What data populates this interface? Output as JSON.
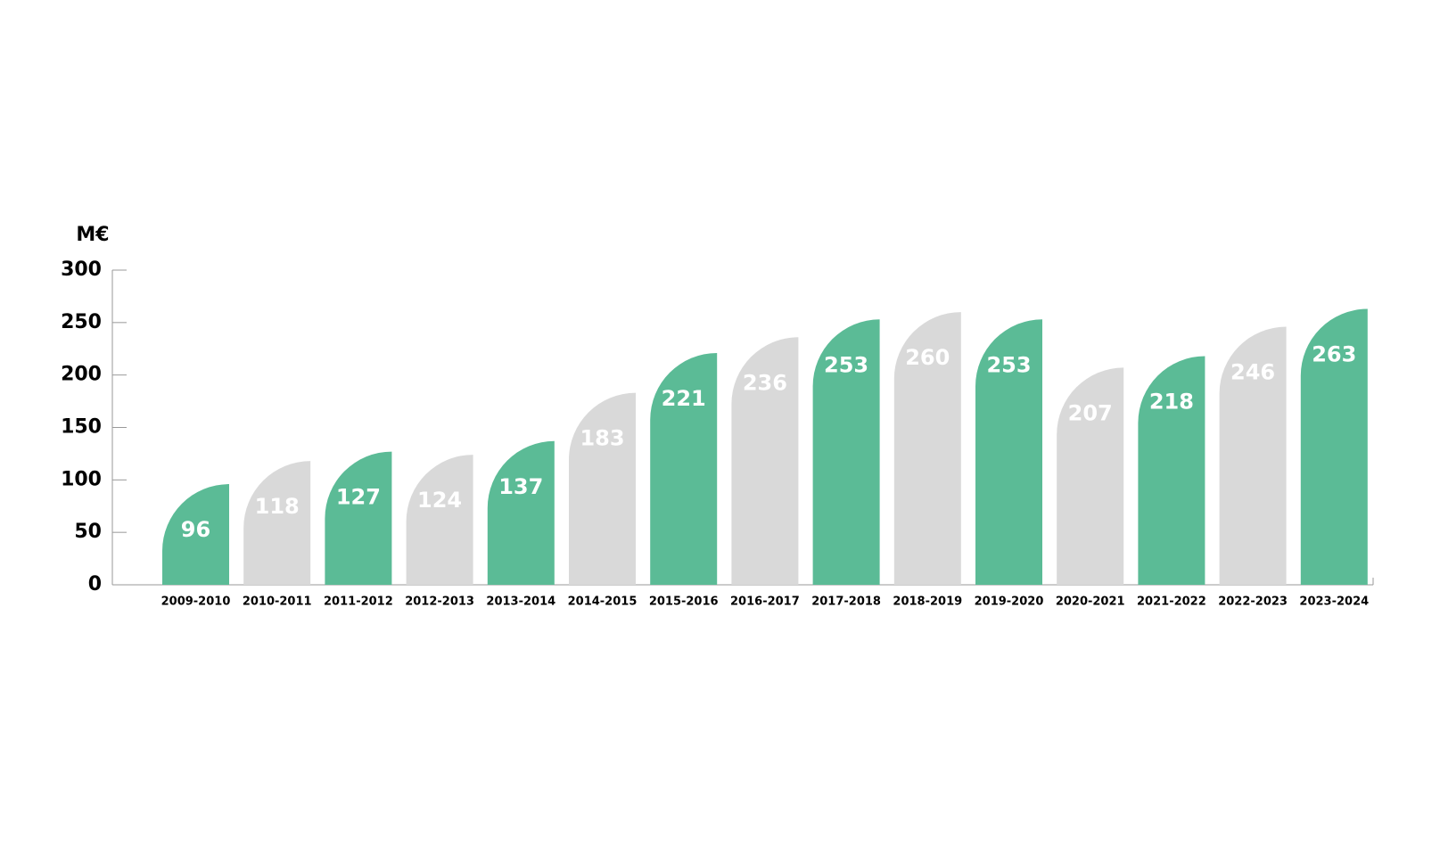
{
  "chart_data": {
    "type": "bar",
    "y_label": "M€",
    "categories": [
      "2009-2010",
      "2010-2011",
      "2011-2012",
      "2012-2013",
      "2013-2014",
      "2014-2015",
      "2015-2016",
      "2016-2017",
      "2017-2018",
      "2018-2019",
      "2019-2020",
      "2020-2021",
      "2021-2022",
      "2022-2023",
      "2023-2024"
    ],
    "values": [
      96,
      118,
      127,
      124,
      137,
      183,
      221,
      236,
      253,
      260,
      253,
      207,
      218,
      246,
      263
    ],
    "colors": [
      "#5bbb96",
      "#d9d9d9",
      "#5bbb96",
      "#d9d9d9",
      "#5bbb96",
      "#d9d9d9",
      "#5bbb96",
      "#d9d9d9",
      "#5bbb96",
      "#d9d9d9",
      "#5bbb96",
      "#d9d9d9",
      "#5bbb96",
      "#d9d9d9",
      "#5bbb96"
    ],
    "ylim": [
      0,
      300
    ],
    "yticks": [
      0,
      50,
      100,
      150,
      200,
      250,
      300
    ]
  }
}
